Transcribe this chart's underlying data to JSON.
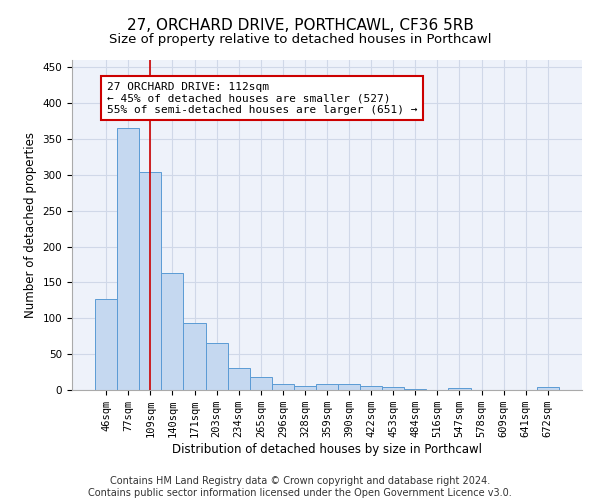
{
  "title": "27, ORCHARD DRIVE, PORTHCAWL, CF36 5RB",
  "subtitle": "Size of property relative to detached houses in Porthcawl",
  "xlabel": "Distribution of detached houses by size in Porthcawl",
  "ylabel": "Number of detached properties",
  "categories": [
    "46sqm",
    "77sqm",
    "109sqm",
    "140sqm",
    "171sqm",
    "203sqm",
    "234sqm",
    "265sqm",
    "296sqm",
    "328sqm",
    "359sqm",
    "390sqm",
    "422sqm",
    "453sqm",
    "484sqm",
    "516sqm",
    "547sqm",
    "578sqm",
    "609sqm",
    "641sqm",
    "672sqm"
  ],
  "values": [
    127,
    365,
    304,
    163,
    93,
    66,
    30,
    18,
    9,
    6,
    8,
    8,
    5,
    4,
    1,
    0,
    3,
    0,
    0,
    0,
    4
  ],
  "bar_color": "#c5d8f0",
  "bar_edge_color": "#5b9bd5",
  "grid_color": "#d0d8e8",
  "background_color": "#eef2fa",
  "annotation_text": "27 ORCHARD DRIVE: 112sqm\n← 45% of detached houses are smaller (527)\n55% of semi-detached houses are larger (651) →",
  "annotation_box_color": "#ffffff",
  "annotation_box_edge": "#cc0000",
  "vline_color": "#cc0000",
  "ylim": [
    0,
    460
  ],
  "yticks": [
    0,
    50,
    100,
    150,
    200,
    250,
    300,
    350,
    400,
    450
  ],
  "vline_x": 2.0,
  "footer_line1": "Contains HM Land Registry data © Crown copyright and database right 2024.",
  "footer_line2": "Contains public sector information licensed under the Open Government Licence v3.0.",
  "title_fontsize": 11,
  "subtitle_fontsize": 9.5,
  "axis_label_fontsize": 8.5,
  "tick_fontsize": 7.5,
  "footer_fontsize": 7,
  "annotation_fontsize": 8
}
